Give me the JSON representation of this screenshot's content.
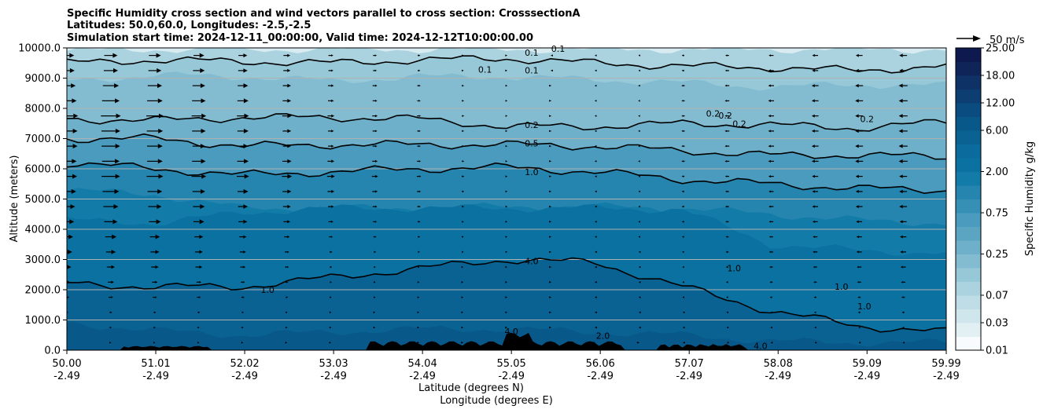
{
  "chart_data": {
    "type": "contourf",
    "title_lines": [
      "Specific Humidity cross section and wind vectors parallel to cross section: CrosssectionA",
      "Latitudes: 50.0,60.0, Longitudes: -2.5,-2.5",
      "Simulation start time: 2024-12-11_00:00:00, Valid time: 2024-12-12T10:00:00.00"
    ],
    "ylabel": "Altitude (meters)",
    "xlabel_lines": [
      "Latitude (degrees N)",
      "Longitude (degrees E)"
    ],
    "ylim": [
      0,
      10000
    ],
    "xlim": [
      50.0,
      59.99
    ],
    "y_ticks": [
      0,
      1000,
      2000,
      3000,
      4000,
      5000,
      6000,
      7000,
      8000,
      9000,
      10000
    ],
    "y_tick_labels": [
      "0.0",
      "1000.0",
      "2000.0",
      "3000.0",
      "4000.0",
      "5000.0",
      "6000.0",
      "7000.0",
      "8000.0",
      "9000.0",
      "10000.0"
    ],
    "x_ticks": [
      {
        "lat": 50.0,
        "lat_label": "50.00",
        "lon_label": "-2.49"
      },
      {
        "lat": 51.01,
        "lat_label": "51.01",
        "lon_label": "-2.49"
      },
      {
        "lat": 52.02,
        "lat_label": "52.02",
        "lon_label": "-2.49"
      },
      {
        "lat": 53.03,
        "lat_label": "53.03",
        "lon_label": "-2.49"
      },
      {
        "lat": 54.04,
        "lat_label": "54.04",
        "lon_label": "-2.49"
      },
      {
        "lat": 55.05,
        "lat_label": "55.05",
        "lon_label": "-2.49"
      },
      {
        "lat": 56.06,
        "lat_label": "56.06",
        "lon_label": "-2.49"
      },
      {
        "lat": 57.07,
        "lat_label": "57.07",
        "lon_label": "-2.49"
      },
      {
        "lat": 58.08,
        "lat_label": "58.08",
        "lon_label": "-2.49"
      },
      {
        "lat": 59.09,
        "lat_label": "59.09",
        "lon_label": "-2.49"
      },
      {
        "lat": 59.99,
        "lat_label": "59.99",
        "lon_label": "-2.49"
      }
    ],
    "grid": "horizontal",
    "colorbar": {
      "label": "Specific Humidity g/kg",
      "levels": [
        0.01,
        0.02,
        0.03,
        0.05,
        0.07,
        0.1,
        0.15,
        0.25,
        0.35,
        0.5,
        0.75,
        1.0,
        1.5,
        2.0,
        3.0,
        4.0,
        6.0,
        8.0,
        12.0,
        15.0,
        18.0,
        21.0,
        25.0
      ],
      "tick_values": [
        0.01,
        0.03,
        0.07,
        0.25,
        0.75,
        2.0,
        6.0,
        12.0,
        18.0,
        25.0
      ],
      "tick_labels": [
        "0.01",
        "0.03",
        "0.07",
        "0.25",
        "0.75",
        "2.00",
        "6.00",
        "12.00",
        "18.00",
        "25.00"
      ],
      "colors": [
        "#f7fbfd",
        "#e2f0f4",
        "#d0e6ed",
        "#bedde6",
        "#aad2df",
        "#97c8d8",
        "#83bcd0",
        "#6eafc9",
        "#5ba5c3",
        "#4a9bbd",
        "#3690b6",
        "#2585ae",
        "#127ba8",
        "#0a71a1",
        "#0b6b9d",
        "#0a6293",
        "#09588a",
        "#0a4c80",
        "#0c3e72",
        "#0e3266",
        "#0f255a",
        "#0e1a4f",
        "#08103f"
      ]
    },
    "humidity_layers": [
      {
        "value": 0.07,
        "top": [
          9900,
          9950,
          9950,
          9950,
          9950,
          9950,
          9950,
          9950,
          9950,
          9950,
          9950
        ]
      },
      {
        "value": 0.1,
        "top": [
          9500,
          9600,
          9550,
          9500,
          9600,
          9650,
          9500,
          9400,
          9350,
          9250,
          9400
        ]
      },
      {
        "value": 0.15,
        "top": [
          8900,
          9100,
          9050,
          8900,
          9050,
          9050,
          8950,
          8850,
          8700,
          8800,
          8750
        ]
      },
      {
        "value": 0.25,
        "top": [
          7650,
          7600,
          7700,
          7700,
          7650,
          7400,
          7400,
          7500,
          7450,
          7350,
          7550
        ]
      },
      {
        "value": 0.5,
        "top": [
          7000,
          7000,
          6750,
          6800,
          6800,
          6800,
          6750,
          6600,
          6450,
          6450,
          6400
        ]
      },
      {
        "value": 1.0,
        "top": [
          6200,
          6000,
          5800,
          5900,
          6000,
          6050,
          5900,
          5650,
          5500,
          5350,
          5300
        ]
      },
      {
        "value": 1.5,
        "top": [
          5300,
          5150,
          4700,
          4700,
          4700,
          4750,
          4750,
          4700,
          4500,
          4300,
          4200
        ]
      },
      {
        "value": 2.0,
        "top": [
          4300,
          4200,
          4550,
          4700,
          4700,
          4700,
          4700,
          4650,
          3500,
          3300,
          3200
        ]
      },
      {
        "value": 4.0,
        "top": [
          2200,
          2100,
          2100,
          2400,
          2700,
          3000,
          2900,
          2100,
          1300,
          800,
          600
        ]
      },
      {
        "value": 6.0,
        "top": [
          900,
          650,
          500,
          600,
          700,
          700,
          600,
          500,
          300,
          250,
          250
        ]
      }
    ],
    "contour_labels": [
      {
        "text": "0.1",
        "lat": 54.75,
        "alt": 9280
      },
      {
        "text": "0.1",
        "lat": 55.28,
        "alt": 9850
      },
      {
        "text": "0.1",
        "lat": 55.28,
        "alt": 9260
      },
      {
        "text": "0.1",
        "lat": 55.58,
        "alt": 9970
      },
      {
        "text": "0.2",
        "lat": 55.28,
        "alt": 7450
      },
      {
        "text": "0.5",
        "lat": 55.28,
        "alt": 6850
      },
      {
        "text": "1.0",
        "lat": 55.28,
        "alt": 5900
      },
      {
        "text": "4.0",
        "lat": 55.28,
        "alt": 2950
      },
      {
        "text": "4.0",
        "lat": 55.05,
        "alt": 620
      },
      {
        "text": "4.0",
        "lat": 57.88,
        "alt": 140
      },
      {
        "text": "2.0",
        "lat": 56.09,
        "alt": 480
      },
      {
        "text": "1.0",
        "lat": 52.28,
        "alt": 2000
      },
      {
        "text": "1.0",
        "lat": 57.58,
        "alt": 2720
      },
      {
        "text": "1.0",
        "lat": 58.8,
        "alt": 2100
      },
      {
        "text": "1.0",
        "lat": 59.06,
        "alt": 1460
      },
      {
        "text": "0.2",
        "lat": 57.34,
        "alt": 7830
      },
      {
        "text": "0.2",
        "lat": 57.48,
        "alt": 7760
      },
      {
        "text": "0.2",
        "lat": 57.64,
        "alt": 7500
      },
      {
        "text": "0.2",
        "lat": 59.09,
        "alt": 7650
      }
    ],
    "quiver_key": {
      "label": "50 m/s",
      "speed_ms": 50
    },
    "wind": {
      "lat_step": 0.5,
      "alt_step": 500,
      "comment": "u component (m/s) along the section; positive = northward",
      "profile_by_lat": [
        {
          "lat": 50.0,
          "u": [
            2,
            4,
            6,
            10,
            14,
            18,
            22,
            26,
            30,
            34,
            38,
            42,
            40,
            44,
            44,
            46,
            40,
            36,
            32,
            30
          ]
        },
        {
          "lat": 51.5,
          "u": [
            2,
            3,
            5,
            8,
            10,
            14,
            16,
            18,
            22,
            24,
            26,
            30,
            28,
            26,
            28,
            30,
            28,
            26,
            24,
            22
          ]
        },
        {
          "lat": 53.0,
          "u": [
            1,
            2,
            2,
            3,
            4,
            5,
            6,
            8,
            10,
            12,
            14,
            16,
            14,
            12,
            12,
            14,
            12,
            12,
            10,
            10
          ]
        },
        {
          "lat": 55.0,
          "u": [
            0,
            1,
            1,
            1,
            1,
            1,
            2,
            2,
            2,
            2,
            2,
            2,
            2,
            2,
            2,
            2,
            2,
            2,
            1,
            1
          ]
        },
        {
          "lat": 56.5,
          "u": [
            0,
            -1,
            -1,
            -2,
            -2,
            -2,
            -2,
            -3,
            -3,
            -3,
            -3,
            -3,
            -4,
            -4,
            -4,
            -4,
            -4,
            -4,
            -3,
            -3
          ]
        },
        {
          "lat": 58.0,
          "u": [
            -2,
            -3,
            -4,
            -5,
            -6,
            -7,
            -8,
            -8,
            -9,
            -10,
            -10,
            -11,
            -12,
            -12,
            -12,
            -12,
            -12,
            -12,
            -11,
            -10
          ]
        },
        {
          "lat": 59.99,
          "u": [
            -2,
            -4,
            -6,
            -8,
            -10,
            -12,
            -14,
            -15,
            -16,
            -18,
            -18,
            -18,
            -20,
            -20,
            -20,
            -20,
            -20,
            -20,
            -18,
            -18
          ]
        }
      ]
    }
  }
}
